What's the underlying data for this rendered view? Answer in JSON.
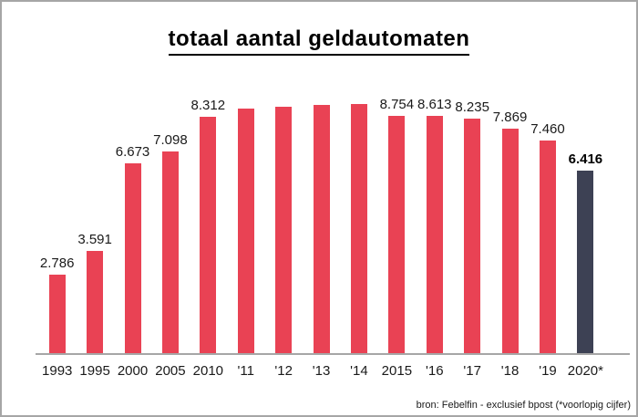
{
  "title": "totaal aantal geldautomaten",
  "footnote": "bron: Febelfin - exclusief bpost (*voorlopig cijfer)",
  "chart_data": {
    "type": "bar",
    "title": "totaal aantal geldautomaten",
    "categories": [
      "1993",
      "1995",
      "2000",
      "2005",
      "2010",
      "'11",
      "'12",
      "'13",
      "'14",
      "2015",
      "'16",
      "'17",
      "'18",
      "'19",
      "2020*"
    ],
    "values": [
      2786,
      3591,
      6673,
      7098,
      8312,
      8570,
      8660,
      8700,
      8730,
      8754,
      8613,
      8235,
      7869,
      7460,
      6416
    ],
    "data_labels": [
      "2.786",
      "3.591",
      "6.673",
      "7.098",
      "8.312",
      "",
      "",
      "",
      "",
      "8.754",
      "8.613",
      "8.235",
      "7.869",
      "7.460",
      "6.416"
    ],
    "highlight_index": 14,
    "bar_color": "#e94254",
    "highlight_color": "#3d4154",
    "axis_color": "#a6a6a6",
    "xlabel": "",
    "ylabel": "",
    "ylim": [
      0,
      9000
    ],
    "grid": false,
    "legend": "none",
    "source_note": "bron: Febelfin - exclusief bpost (*voorlopig cijfer)"
  }
}
